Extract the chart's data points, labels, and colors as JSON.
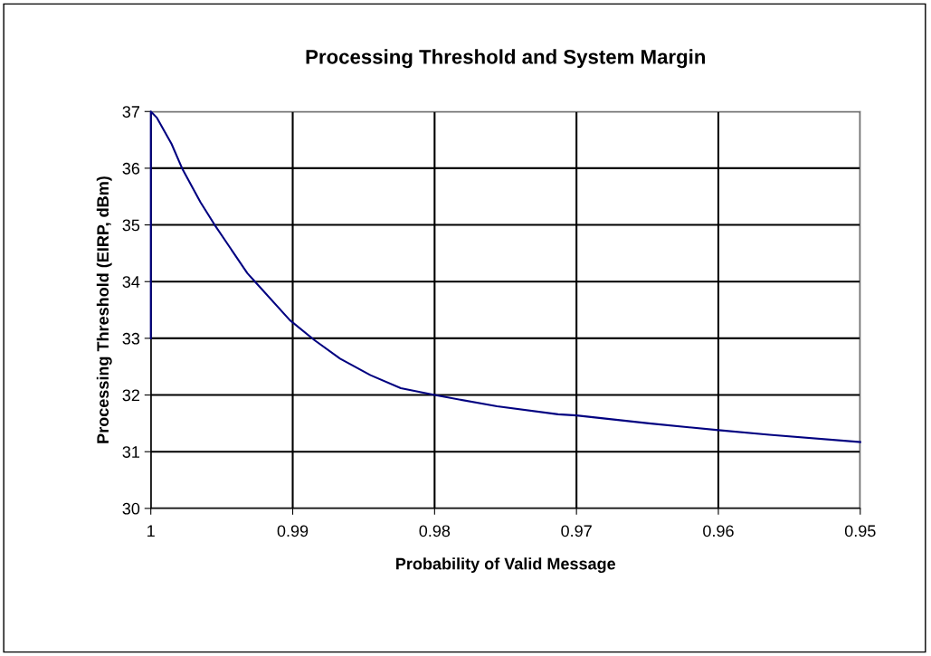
{
  "chart_data": {
    "type": "line",
    "title": "Processing Threshold and System Margin",
    "xlabel": "Probability of Valid Message",
    "ylabel": "Processing Threshold (EIRP, dBm)",
    "series": [
      {
        "color": "#000080",
        "x": [
          1,
          1,
          1,
          0.99957,
          0.99854,
          0.9978,
          0.9965,
          0.9955,
          0.9932,
          0.99266,
          0.9902,
          0.98848,
          0.98666,
          0.98452,
          0.98238,
          0.98,
          0.9756,
          0.9713,
          0.97,
          0.9649,
          0.96,
          0.9564,
          0.95
        ],
        "values": [
          33,
          36.2,
          37,
          36.89,
          36.43,
          36.0,
          35.4,
          35.0,
          34.15,
          34.0,
          33.32,
          32.97,
          32.64,
          32.35,
          32.12,
          32.0,
          31.8,
          31.66,
          31.64,
          31.5,
          31.38,
          31.3,
          31.17
        ]
      }
    ],
    "xlim": [
      1,
      0.95
    ],
    "xticks": [
      1,
      0.99,
      0.98,
      0.97,
      0.96,
      0.95
    ],
    "ylim": [
      30,
      37
    ],
    "yticks": [
      30,
      31,
      32,
      33,
      34,
      35,
      36,
      37
    ],
    "grid": true,
    "marker": "none",
    "line_style": "solid"
  }
}
